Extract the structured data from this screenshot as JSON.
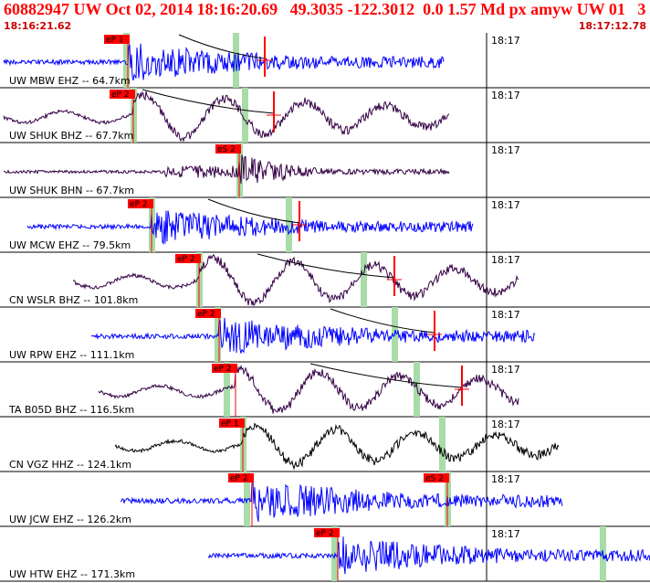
{
  "header": {
    "title": "60882947 UW Oct 02, 2014 18:16:20.69   49.3035 -122.3012  0.0 1.57 Md px amyw UW 01   3",
    "start_time": "18:16:21.62",
    "end_time": "18:17:12.78"
  },
  "colors": {
    "header_text": "#ff0000",
    "pick_box": "#ff0000",
    "pick_window": "#a8dca8",
    "moveout_curve": "#000000"
  },
  "traces": [
    {
      "label": "UW MBW EHZ -- 64.7km",
      "minute_tick": "18:17",
      "color": "#0000ff",
      "picks": [
        {
          "text": "eP 1",
          "kind": "P"
        }
      ]
    },
    {
      "label": "UW SHUK BHZ -- 67.7km",
      "minute_tick": "18:17",
      "color": "#330044",
      "picks": [
        {
          "text": "eP 2",
          "kind": "P"
        }
      ]
    },
    {
      "label": "UW SHUK BHN -- 67.7km",
      "minute_tick": "18:17",
      "color": "#330044",
      "picks": [
        {
          "text": "eS 2",
          "kind": "S"
        }
      ]
    },
    {
      "label": "UW MCW EHZ -- 79.5km",
      "minute_tick": "18:17",
      "color": "#0000ff",
      "picks": [
        {
          "text": "eP 2",
          "kind": "P"
        }
      ]
    },
    {
      "label": "CN WSLR BHZ -- 101.8km",
      "minute_tick": "18:17",
      "color": "#330044",
      "picks": [
        {
          "text": "eP 2",
          "kind": "P"
        }
      ]
    },
    {
      "label": "UW RPW EHZ -- 111.1km",
      "minute_tick": "18:17",
      "color": "#0000ff",
      "picks": [
        {
          "text": "eP 2",
          "kind": "P"
        }
      ]
    },
    {
      "label": "TA B05D BHZ -- 116.5km",
      "minute_tick": "18:17",
      "color": "#330044",
      "picks": [
        {
          "text": "eP 2",
          "kind": "P"
        }
      ]
    },
    {
      "label": "CN VGZ HHZ -- 124.1km",
      "minute_tick": "18:17",
      "color": "#000000",
      "picks": [
        {
          "text": "eP 1",
          "kind": "P"
        }
      ]
    },
    {
      "label": "UW JCW EHZ -- 126.2km",
      "minute_tick": "18:17",
      "color": "#0000ff",
      "picks": [
        {
          "text": "eP 2",
          "kind": "P"
        },
        {
          "text": "eS 2",
          "kind": "S"
        }
      ]
    },
    {
      "label": "UW HTW EHZ -- 171.3km",
      "minute_tick": "18:17",
      "color": "#0000ff",
      "picks": [
        {
          "text": "eP 2",
          "kind": "P"
        }
      ]
    }
  ]
}
